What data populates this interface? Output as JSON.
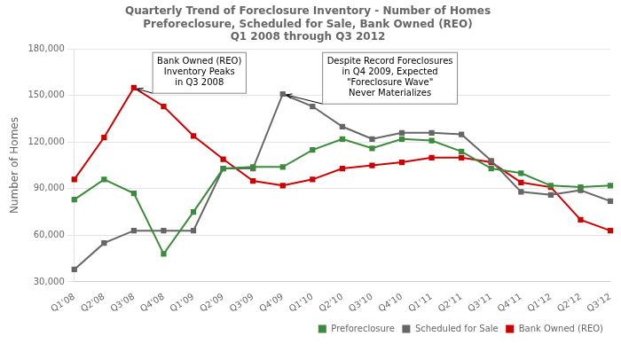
{
  "chart_data": {
    "type": "line",
    "title": [
      "Quarterly Trend of Foreclosure Inventory - Number of Homes",
      "Preforeclosure, Scheduled for Sale, Bank Owned (REO)",
      "Q1 2008 through Q3 2012"
    ],
    "y_label": "Number of Homes",
    "categories": [
      "Q1'08",
      "Q2'08",
      "Q3'08",
      "Q4'08",
      "Q1'09",
      "Q2'09",
      "Q3'09",
      "Q4'09",
      "Q1'10",
      "Q2'10",
      "Q3'10",
      "Q4'10",
      "Q1'11",
      "Q2'11",
      "Q3'11",
      "Q4'11",
      "Q1'12",
      "Q2'12",
      "Q3'12"
    ],
    "series": [
      {
        "name": "Preforeclosure",
        "color": "#3c8a3c",
        "marker": "square",
        "values": [
          83000,
          96000,
          87000,
          48000,
          75000,
          103000,
          104000,
          104000,
          115000,
          122000,
          116000,
          122000,
          121000,
          114000,
          103000,
          100000,
          92000,
          91000,
          92000
        ]
      },
      {
        "name": "Scheduled for Sale",
        "color": "#666666",
        "marker": "square",
        "values": [
          38000,
          55000,
          63000,
          63000,
          63000,
          103000,
          103000,
          151000,
          143000,
          130000,
          122000,
          126000,
          126000,
          125000,
          108000,
          88000,
          86000,
          89000,
          82000
        ]
      },
      {
        "name": "Bank Owned (REO)",
        "color": "#cc0000",
        "marker": "square",
        "values": [
          96000,
          123000,
          155000,
          143000,
          124000,
          109000,
          95000,
          92000,
          96000,
          103000,
          105000,
          107000,
          110000,
          110000,
          107000,
          94000,
          91000,
          70000,
          63000
        ]
      }
    ],
    "ylim": [
      30000,
      180000
    ],
    "yticks": [
      {
        "value": 30000,
        "label": "30,000"
      },
      {
        "value": 60000,
        "label": "60,000"
      },
      {
        "value": 90000,
        "label": "90,000"
      },
      {
        "value": 120000,
        "label": "120,000"
      },
      {
        "value": 150000,
        "label": "150,000"
      },
      {
        "value": 180000,
        "label": "180,000"
      }
    ],
    "grid": true,
    "legend": "lower right",
    "annotations": [
      {
        "text": "Bank Owned (REO)\nInventory Peaks\nin Q3 2008",
        "x": "Q3'08",
        "y": 155000
      },
      {
        "text": "Despite Record Foreclosures\nin Q4 2009, Expected\n\"Foreclosure Wave\"\nNever Materializes",
        "x": "Q4'09",
        "y": 151000
      }
    ]
  }
}
